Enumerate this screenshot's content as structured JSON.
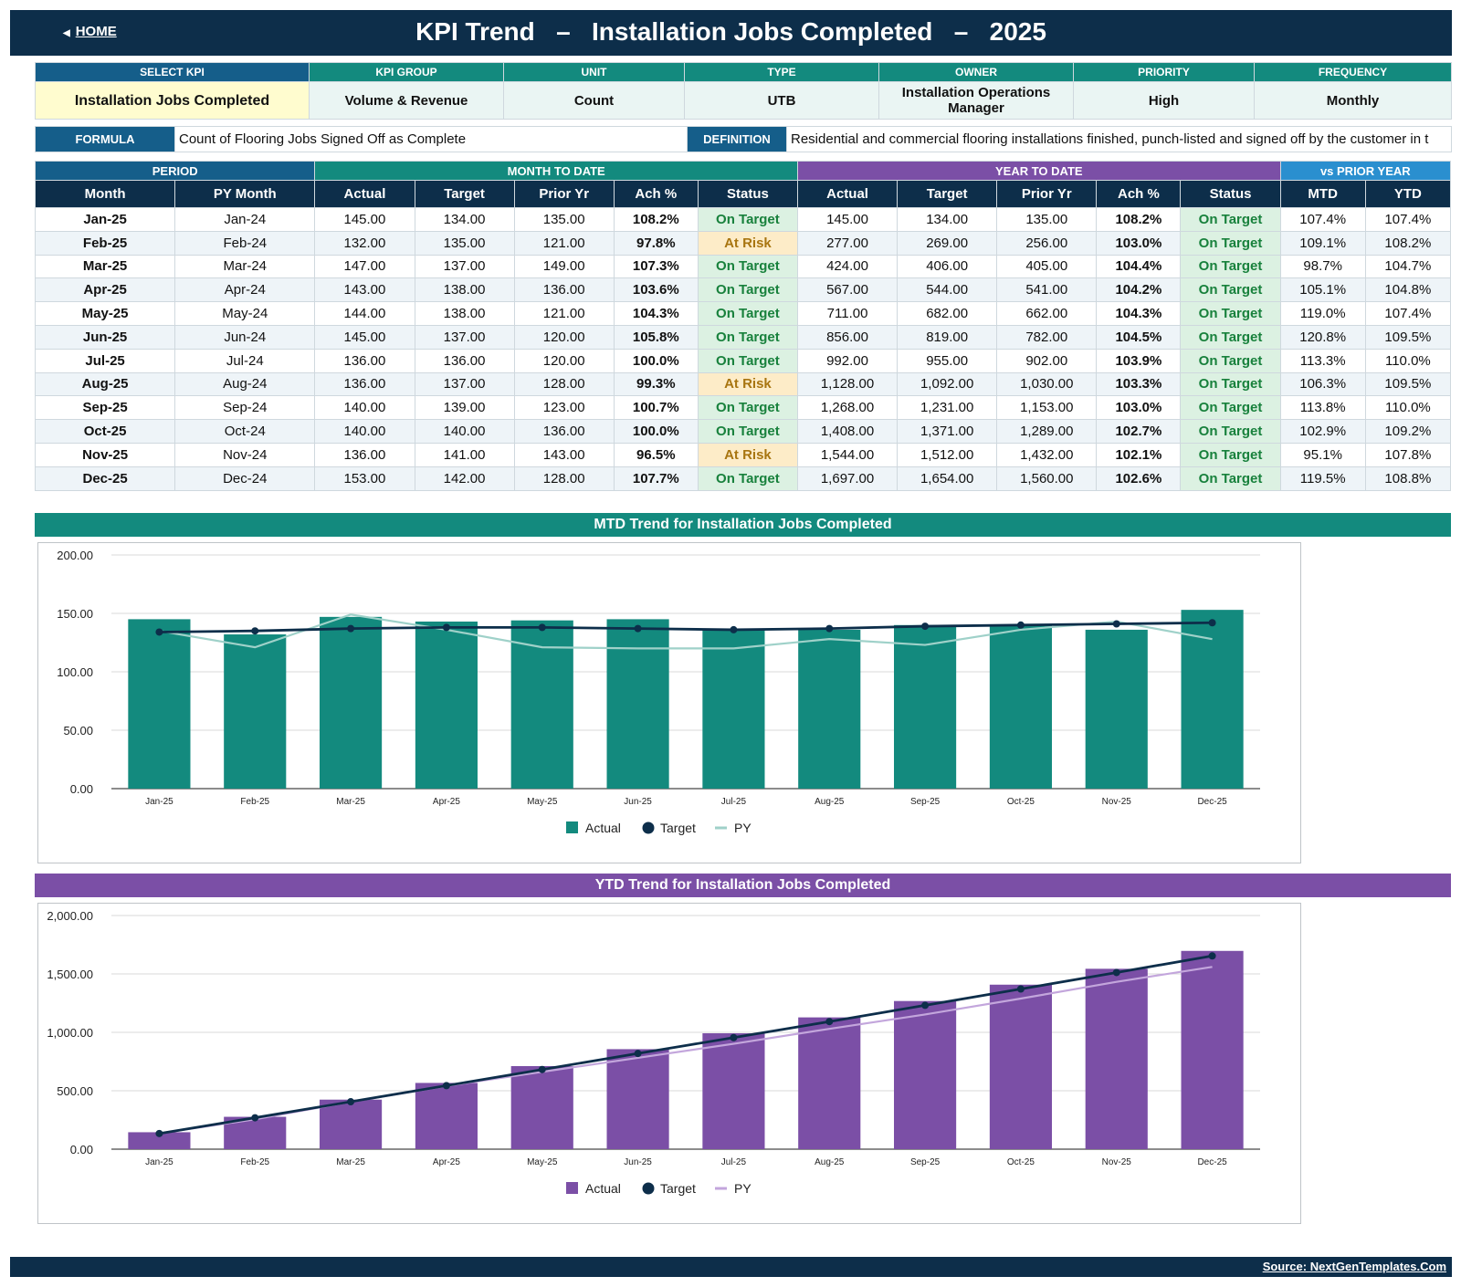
{
  "header": {
    "home_label": "HOME",
    "title": "KPI Trend   –   Installation Jobs Completed   –   2025"
  },
  "kpi_info": {
    "headers": [
      "SELECT KPI",
      "KPI GROUP",
      "UNIT",
      "TYPE",
      "OWNER",
      "PRIORITY",
      "FREQUENCY"
    ],
    "values": [
      "Installation Jobs Completed",
      "Volume & Revenue",
      "Count",
      "UTB",
      "Installation Operations Manager",
      "High",
      "Monthly"
    ]
  },
  "formula": {
    "label": "FORMULA",
    "text": "Count of Flooring Jobs Signed Off as Complete",
    "definition_label": "DEFINITION",
    "definition_text": "Residential and commercial flooring installations finished, punch-listed and signed off by the customer in t"
  },
  "table": {
    "groups": {
      "period": "PERIOD",
      "mtd": "MONTH TO DATE",
      "ytd": "YEAR TO DATE",
      "py": "vs PRIOR YEAR"
    },
    "columns": [
      "Month",
      "PY Month",
      "Actual",
      "Target",
      "Prior Yr",
      "Ach %",
      "Status",
      "Actual",
      "Target",
      "Prior Yr",
      "Ach %",
      "Status",
      "MTD",
      "YTD"
    ],
    "rows": [
      [
        "Jan-25",
        "Jan-24",
        "145.00",
        "134.00",
        "135.00",
        "108.2%",
        "On Target",
        "145.00",
        "134.00",
        "135.00",
        "108.2%",
        "On Target",
        "107.4%",
        "107.4%"
      ],
      [
        "Feb-25",
        "Feb-24",
        "132.00",
        "135.00",
        "121.00",
        "97.8%",
        "At Risk",
        "277.00",
        "269.00",
        "256.00",
        "103.0%",
        "On Target",
        "109.1%",
        "108.2%"
      ],
      [
        "Mar-25",
        "Mar-24",
        "147.00",
        "137.00",
        "149.00",
        "107.3%",
        "On Target",
        "424.00",
        "406.00",
        "405.00",
        "104.4%",
        "On Target",
        "98.7%",
        "104.7%"
      ],
      [
        "Apr-25",
        "Apr-24",
        "143.00",
        "138.00",
        "136.00",
        "103.6%",
        "On Target",
        "567.00",
        "544.00",
        "541.00",
        "104.2%",
        "On Target",
        "105.1%",
        "104.8%"
      ],
      [
        "May-25",
        "May-24",
        "144.00",
        "138.00",
        "121.00",
        "104.3%",
        "On Target",
        "711.00",
        "682.00",
        "662.00",
        "104.3%",
        "On Target",
        "119.0%",
        "107.4%"
      ],
      [
        "Jun-25",
        "Jun-24",
        "145.00",
        "137.00",
        "120.00",
        "105.8%",
        "On Target",
        "856.00",
        "819.00",
        "782.00",
        "104.5%",
        "On Target",
        "120.8%",
        "109.5%"
      ],
      [
        "Jul-25",
        "Jul-24",
        "136.00",
        "136.00",
        "120.00",
        "100.0%",
        "On Target",
        "992.00",
        "955.00",
        "902.00",
        "103.9%",
        "On Target",
        "113.3%",
        "110.0%"
      ],
      [
        "Aug-25",
        "Aug-24",
        "136.00",
        "137.00",
        "128.00",
        "99.3%",
        "At Risk",
        "1,128.00",
        "1,092.00",
        "1,030.00",
        "103.3%",
        "On Target",
        "106.3%",
        "109.5%"
      ],
      [
        "Sep-25",
        "Sep-24",
        "140.00",
        "139.00",
        "123.00",
        "100.7%",
        "On Target",
        "1,268.00",
        "1,231.00",
        "1,153.00",
        "103.0%",
        "On Target",
        "113.8%",
        "110.0%"
      ],
      [
        "Oct-25",
        "Oct-24",
        "140.00",
        "140.00",
        "136.00",
        "100.0%",
        "On Target",
        "1,408.00",
        "1,371.00",
        "1,289.00",
        "102.7%",
        "On Target",
        "102.9%",
        "109.2%"
      ],
      [
        "Nov-25",
        "Nov-24",
        "136.00",
        "141.00",
        "143.00",
        "96.5%",
        "At Risk",
        "1,544.00",
        "1,512.00",
        "1,432.00",
        "102.1%",
        "On Target",
        "95.1%",
        "107.8%"
      ],
      [
        "Dec-25",
        "Dec-24",
        "153.00",
        "142.00",
        "128.00",
        "107.7%",
        "On Target",
        "1,697.00",
        "1,654.00",
        "1,560.00",
        "102.6%",
        "On Target",
        "119.5%",
        "108.8%"
      ]
    ]
  },
  "colors": {
    "navy": "#0d2e4a",
    "teal": "#138a7e",
    "purple": "#7b4fa6",
    "py_mtd": "#9fd1c9",
    "py_ytd": "#c3a6dc",
    "on_target": "#18813c",
    "at_risk": "#a87510"
  },
  "chart_data": [
    {
      "type": "bar",
      "title": "MTD Trend for Installation Jobs Completed",
      "categories": [
        "Jan-25",
        "Feb-25",
        "Mar-25",
        "Apr-25",
        "May-25",
        "Jun-25",
        "Jul-25",
        "Aug-25",
        "Sep-25",
        "Oct-25",
        "Nov-25",
        "Dec-25"
      ],
      "series": [
        {
          "name": "Actual",
          "kind": "bar",
          "values": [
            145,
            132,
            147,
            143,
            144,
            145,
            136,
            136,
            140,
            140,
            136,
            153
          ]
        },
        {
          "name": "Target",
          "kind": "line-markers",
          "values": [
            134,
            135,
            137,
            138,
            138,
            137,
            136,
            137,
            139,
            140,
            141,
            142
          ]
        },
        {
          "name": "PY",
          "kind": "line",
          "values": [
            135,
            121,
            149,
            136,
            121,
            120,
            120,
            128,
            123,
            136,
            143,
            128
          ]
        }
      ],
      "ylim": [
        0,
        200
      ],
      "yticks": [
        "0.00",
        "50.00",
        "100.00",
        "150.00",
        "200.00"
      ],
      "grid": true,
      "legend": "bottom"
    },
    {
      "type": "bar",
      "title": "YTD Trend for Installation Jobs Completed",
      "categories": [
        "Jan-25",
        "Feb-25",
        "Mar-25",
        "Apr-25",
        "May-25",
        "Jun-25",
        "Jul-25",
        "Aug-25",
        "Sep-25",
        "Oct-25",
        "Nov-25",
        "Dec-25"
      ],
      "series": [
        {
          "name": "Actual",
          "kind": "bar",
          "values": [
            145,
            277,
            424,
            567,
            711,
            856,
            992,
            1128,
            1268,
            1408,
            1544,
            1697
          ]
        },
        {
          "name": "Target",
          "kind": "line-markers",
          "values": [
            134,
            269,
            406,
            544,
            682,
            819,
            955,
            1092,
            1231,
            1371,
            1512,
            1654
          ]
        },
        {
          "name": "PY",
          "kind": "line",
          "values": [
            135,
            256,
            405,
            541,
            662,
            782,
            902,
            1030,
            1153,
            1289,
            1432,
            1560
          ]
        }
      ],
      "ylim": [
        0,
        2000
      ],
      "yticks": [
        "0.00",
        "500.00",
        "1,000.00",
        "1,500.00",
        "2,000.00"
      ],
      "grid": true,
      "legend": "bottom"
    }
  ],
  "footer": {
    "source": "Source: NextGenTemplates.Com"
  }
}
